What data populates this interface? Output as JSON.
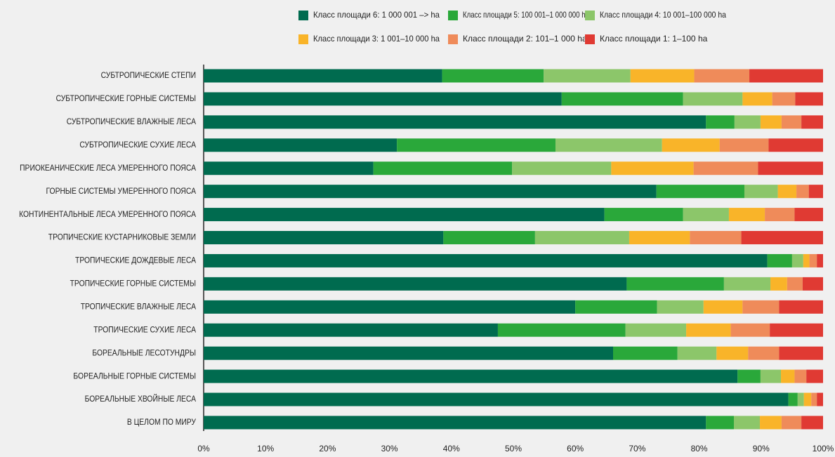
{
  "chart_data": {
    "type": "stacked_barh",
    "categories": [
      "СУБТРОПИЧЕСКИЕ СТЕПИ",
      "СУБТРОПИЧЕСКИЕ ГОРНЫЕ СИСТЕМЫ",
      "СУБТРОПИЧЕСКИЕ ВЛАЖНЫЕ ЛЕСА",
      "СУБТРОПИЧЕСКИЕ СУХИЕ ЛЕСА",
      "ПРИОКЕАНИЧЕСКИЕ ЛЕСА УМЕРЕННОГО ПОЯСА",
      "ГОРНЫЕ СИСТЕМЫ УМЕРЕННОГО ПОЯСА",
      "КОНТИНЕНТАЛЬНЫЕ ЛЕСА УМЕРЕННОГО ПОЯСА",
      "ТРОПИЧЕСКИЕ КУСТАРНИКОВЫЕ ЗЕМЛИ",
      "ТРОПИЧЕСКИЕ ДОЖДЕВЫЕ ЛЕСА",
      "ТРОПИЧЕСКИЕ ГОРНЫЕ СИСТЕМЫ",
      "ТРОПИЧЕСКИЕ ВЛАЖНЫЕ ЛЕСА",
      "ТРОПИЧЕСКИЕ СУХИЕ ЛЕСА",
      "БОРЕАЛЬНЫЕ ЛЕСОТУНДРЫ",
      "БОРЕАЛЬНЫЕ ГОРНЫЕ СИСТЕМЫ",
      "БОРЕАЛЬНЫЕ ХВОЙНЫЕ ЛЕСА",
      "В ЦЕЛОМ ПО МИРУ"
    ],
    "series": [
      {
        "name": "Класс площади 6: 1 000 001 –> ha",
        "color": "#006b4f",
        "values": [
          38.5,
          57.8,
          81.1,
          31.2,
          27.4,
          73.1,
          64.7,
          38.7,
          91.0,
          68.3,
          60.0,
          47.5,
          66.1,
          86.2,
          94.4,
          81.1
        ]
      },
      {
        "name": "Класс площади 5: 100 001–1 000 000 ha",
        "color": "#2aa83a",
        "values": [
          16.4,
          19.6,
          4.6,
          25.6,
          22.4,
          14.2,
          12.7,
          14.8,
          4.0,
          15.7,
          13.2,
          20.6,
          10.4,
          3.7,
          1.5,
          4.5
        ]
      },
      {
        "name": "Класс площади 4: 10 001–100 000 ha",
        "color": "#8cc66a",
        "values": [
          14.0,
          9.6,
          4.2,
          17.2,
          16.0,
          5.4,
          7.4,
          15.2,
          1.8,
          7.5,
          7.5,
          9.8,
          6.3,
          3.3,
          1.0,
          4.2
        ]
      },
      {
        "name": "Класс площади 3: 1 001–10 000 ha",
        "color": "#f9b429",
        "values": [
          10.3,
          4.8,
          3.4,
          9.3,
          13.3,
          3.0,
          5.8,
          9.8,
          1.0,
          2.7,
          6.3,
          7.2,
          5.1,
          2.2,
          1.2,
          3.5
        ]
      },
      {
        "name": "Класс площади 2: 101–1 000 ha",
        "color": "#ef8b5a",
        "values": [
          8.9,
          3.7,
          3.2,
          7.9,
          10.4,
          2.0,
          4.8,
          8.3,
          1.2,
          2.5,
          5.9,
          6.3,
          5.0,
          1.9,
          0.9,
          3.2
        ]
      },
      {
        "name": "Класс площади 1: 1–100 ha",
        "color": "#e03a33",
        "values": [
          11.9,
          4.5,
          3.5,
          8.8,
          10.5,
          2.3,
          4.6,
          13.2,
          1.0,
          3.3,
          7.1,
          8.6,
          7.1,
          2.7,
          1.0,
          3.5
        ]
      }
    ],
    "xlim": [
      0,
      100
    ],
    "xticks": [
      {
        "value": 0,
        "label": "0%"
      },
      {
        "value": 10,
        "label": "10%"
      },
      {
        "value": 20,
        "label": "20%"
      },
      {
        "value": 30,
        "label": "30%"
      },
      {
        "value": 40,
        "label": "40%"
      },
      {
        "value": 50,
        "label": "50%"
      },
      {
        "value": 60,
        "label": "60%"
      },
      {
        "value": 70,
        "label": "70%"
      },
      {
        "value": 80,
        "label": "80%"
      },
      {
        "value": 90,
        "label": "90%"
      },
      {
        "value": 100,
        "label": "100%"
      }
    ],
    "legend": "top"
  }
}
